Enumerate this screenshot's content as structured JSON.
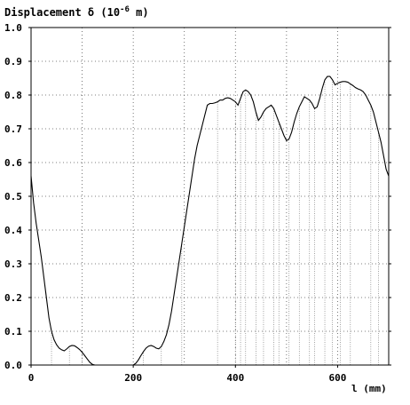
{
  "chart_data": {
    "type": "line",
    "title_main": "Displacement δ (10",
    "title_exp": "-6",
    "title_unit": " m)",
    "xlabel": "l (mm)",
    "xlim": [
      0,
      700
    ],
    "ylim": [
      0,
      1.0
    ],
    "xticks": [
      "0",
      "200",
      "400",
      "600"
    ],
    "xtick_values": [
      0,
      200,
      400,
      600
    ],
    "yticks": [
      "0.0",
      "0.1",
      "0.2",
      "0.3",
      "0.4",
      "0.5",
      "0.6",
      "0.7",
      "0.8",
      "0.9",
      "1.0"
    ],
    "ytick_values": [
      0.0,
      0.1,
      0.2,
      0.3,
      0.4,
      0.5,
      0.6,
      0.7,
      0.8,
      0.9,
      1.0
    ],
    "x_gridlines": [
      100,
      200,
      300,
      400,
      500,
      600
    ],
    "y_gridlines": [
      0.1,
      0.2,
      0.3,
      0.4,
      0.5,
      0.6,
      0.7,
      0.8,
      0.9
    ],
    "grid": true,
    "support_lines_x": [
      40,
      75,
      100,
      125,
      220,
      255,
      295,
      365,
      400,
      410,
      420,
      440,
      455,
      475,
      485,
      505,
      525,
      545,
      555,
      575,
      590,
      605,
      625,
      665,
      680
    ],
    "series": [
      {
        "x": [
          0,
          5,
          10,
          15,
          20,
          25,
          30,
          35,
          40,
          45,
          50,
          55,
          60,
          65,
          70,
          75,
          80,
          85,
          90,
          95,
          100,
          105,
          110,
          115,
          120,
          125,
          130,
          140,
          150,
          160,
          170,
          180,
          190,
          200,
          205,
          210,
          215,
          220,
          225,
          230,
          235,
          240,
          245,
          250,
          255,
          260,
          265,
          270,
          275,
          280,
          285,
          290,
          295,
          300,
          305,
          310,
          315,
          320,
          325,
          330,
          335,
          340,
          345,
          350,
          355,
          360,
          365,
          370,
          375,
          380,
          385,
          390,
          395,
          400,
          405,
          410,
          415,
          420,
          425,
          430,
          435,
          440,
          445,
          450,
          455,
          460,
          465,
          470,
          475,
          480,
          485,
          490,
          495,
          500,
          505,
          510,
          515,
          520,
          525,
          530,
          535,
          540,
          545,
          550,
          555,
          560,
          565,
          570,
          575,
          580,
          585,
          590,
          595,
          600,
          605,
          610,
          615,
          620,
          625,
          630,
          635,
          640,
          645,
          650,
          655,
          660,
          665,
          670,
          675,
          680,
          685,
          690,
          695,
          700
        ],
        "y": [
          0.56,
          0.48,
          0.42,
          0.37,
          0.32,
          0.26,
          0.2,
          0.14,
          0.1,
          0.075,
          0.06,
          0.05,
          0.045,
          0.042,
          0.048,
          0.055,
          0.058,
          0.057,
          0.052,
          0.046,
          0.038,
          0.028,
          0.018,
          0.008,
          0.002,
          0.0,
          0.0,
          0.0,
          0.0,
          0.0,
          0.0,
          0.0,
          0.0,
          0.0,
          0.005,
          0.015,
          0.028,
          0.04,
          0.05,
          0.056,
          0.058,
          0.055,
          0.05,
          0.048,
          0.055,
          0.07,
          0.09,
          0.12,
          0.16,
          0.21,
          0.26,
          0.31,
          0.36,
          0.41,
          0.46,
          0.51,
          0.56,
          0.61,
          0.65,
          0.68,
          0.71,
          0.74,
          0.77,
          0.775,
          0.775,
          0.777,
          0.78,
          0.785,
          0.785,
          0.79,
          0.792,
          0.79,
          0.785,
          0.78,
          0.77,
          0.79,
          0.81,
          0.815,
          0.81,
          0.8,
          0.78,
          0.75,
          0.725,
          0.735,
          0.75,
          0.76,
          0.765,
          0.77,
          0.76,
          0.74,
          0.72,
          0.7,
          0.68,
          0.665,
          0.67,
          0.69,
          0.72,
          0.745,
          0.765,
          0.78,
          0.795,
          0.79,
          0.785,
          0.775,
          0.76,
          0.765,
          0.79,
          0.82,
          0.845,
          0.855,
          0.855,
          0.845,
          0.83,
          0.835,
          0.838,
          0.84,
          0.84,
          0.838,
          0.833,
          0.828,
          0.822,
          0.818,
          0.815,
          0.81,
          0.8,
          0.785,
          0.77,
          0.75,
          0.72,
          0.69,
          0.66,
          0.62,
          0.58,
          0.56
        ]
      }
    ]
  }
}
